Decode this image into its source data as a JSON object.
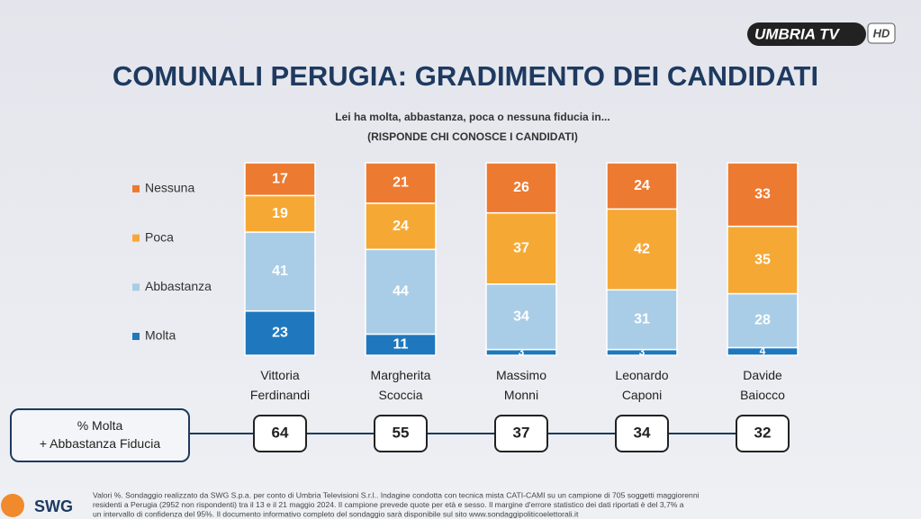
{
  "chart_data": {
    "type": "stacked_bar",
    "title": "COMUNALI PERUGIA: GRADIMENTO DEI CANDIDATI",
    "subtitle": [
      "Lei ha molta, abbastanza, poca o nessuna fiducia in...",
      "(RISPONDE CHI CONOSCE I CANDIDATI)"
    ],
    "categories": [
      "Vittoria Ferdinandi",
      "Margherita Scoccia",
      "Massimo Monni",
      "Leonardo Caponi",
      "Davide Baiocco"
    ],
    "series": [
      {
        "name": "Molta",
        "color": "#1f78be",
        "values": [
          23,
          11,
          3,
          3,
          4
        ]
      },
      {
        "name": "Abbastanza",
        "color": "#a9cde6",
        "values": [
          41,
          44,
          34,
          31,
          28
        ]
      },
      {
        "name": "Poca",
        "color": "#f6a834",
        "values": [
          19,
          24,
          37,
          42,
          35
        ]
      },
      {
        "name": "Nessuna",
        "color": "#ec7a30",
        "values": [
          17,
          21,
          26,
          24,
          33
        ]
      }
    ],
    "totals": {
      "label": "% Molta + Abbastanza Fiducia",
      "values": [
        64,
        55,
        37,
        34,
        32
      ]
    },
    "footnote": [
      "Valori %. Sondaggio realizzato da SWG S.p.a. per conto di Umbria Televisioni S.r.l.. Indagine condotta con tecnica mista CATI-CAMI su un campione di 705 soggetti maggiorenni",
      "residenti a Perugia (2952 non rispondenti) tra il 13 e il 21 maggio 2024. Il campione prevede quote per età e sesso. Il margine d'errore statistico dei dati riportati è del 3,7% a",
      "un intervallo di confidenza del 95%. Il documento informativo completo del sondaggio sarà disponibile sul sito www.sondaggipoliticoelettorali.it"
    ],
    "brand": "SWG",
    "channel": {
      "name": "UMBRIA TV",
      "badge": "HD"
    }
  }
}
